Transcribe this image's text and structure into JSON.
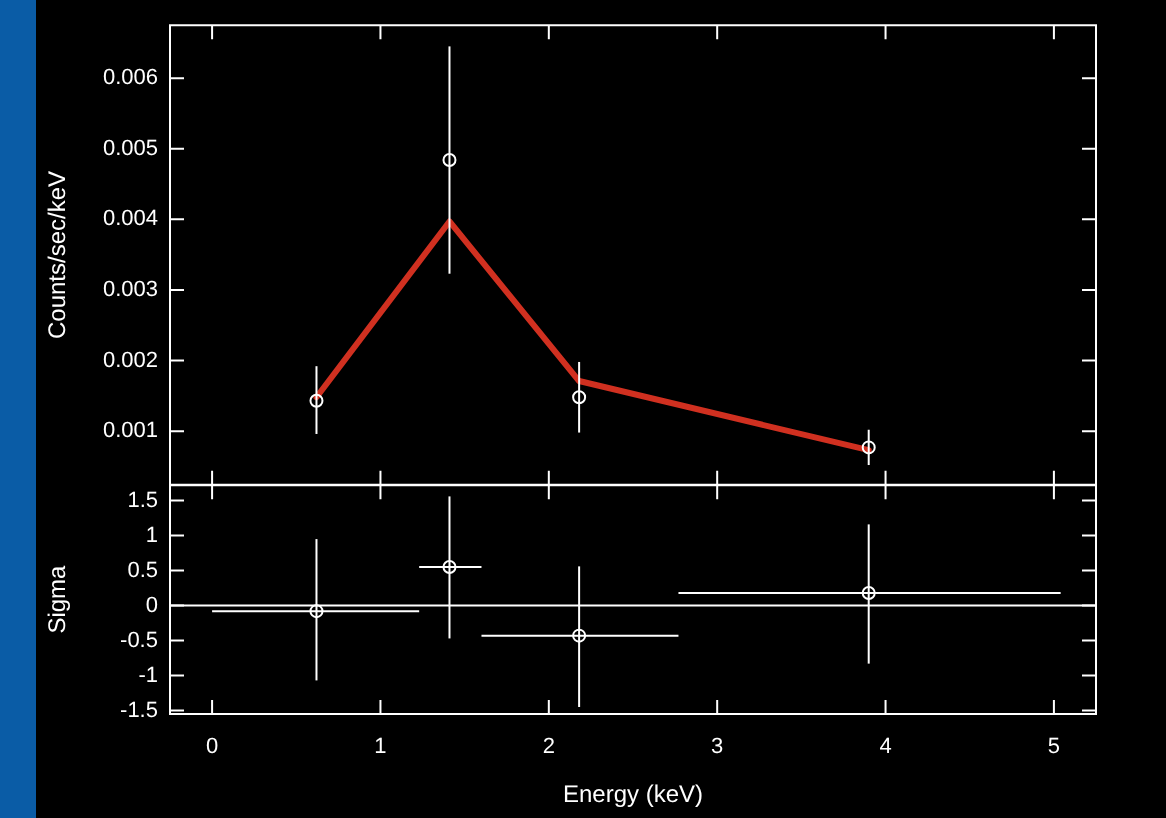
{
  "chart_data": [
    {
      "type": "scatter",
      "ylabel": "Counts/sec/keV",
      "xlim": [
        -0.25,
        5.25
      ],
      "xticks": [
        0,
        1,
        2,
        3,
        4,
        5
      ],
      "ylim": [
        0.00024,
        0.00675
      ],
      "yticks": [
        0.001,
        0.002,
        0.003,
        0.004,
        0.005,
        0.006
      ],
      "tick_labels": "y",
      "grid": false,
      "legend": false,
      "x": [
        0.62,
        1.41,
        2.18,
        3.9
      ],
      "series": [
        {
          "type": "scatter",
          "color": "#ffffff",
          "marker": "circle",
          "values": [
            0.00143,
            0.00484,
            0.00148,
            0.00077
          ],
          "errors": [
            [
              0.00096,
              0.00192
            ],
            [
              0.00323,
              0.00645
            ],
            [
              0.00098,
              0.00198
            ],
            [
              0.00052,
              0.00102
            ]
          ]
        },
        {
          "type": "line",
          "color": "#d03020",
          "marker": "none",
          "values": [
            0.00148,
            0.00397,
            0.00171,
            0.00073
          ]
        }
      ]
    },
    {
      "type": "scatter",
      "xlabel": "Energy (keV)",
      "ylabel": "Sigma",
      "xlim": [
        -0.25,
        5.25
      ],
      "xticks": [
        0,
        1,
        2,
        3,
        4,
        5
      ],
      "ylim": [
        -1.55,
        1.72
      ],
      "yticks": [
        -1.5,
        -1,
        -0.5,
        0,
        0.5,
        1,
        1.5
      ],
      "grid": false,
      "legend": false,
      "x": [
        0.62,
        1.41,
        2.18,
        3.9
      ],
      "ref_lines": [
        {
          "axis": "y",
          "value": 0,
          "color": "#ffffff"
        }
      ],
      "series": [
        {
          "type": "scatter",
          "color": "#ffffff",
          "marker": "circle",
          "values": [
            -0.08,
            0.55,
            -0.43,
            0.18
          ],
          "errors": [
            [
              -1.07,
              0.95
            ],
            [
              -0.47,
              1.56
            ],
            [
              -1.45,
              0.56
            ],
            [
              -0.83,
              1.16
            ]
          ],
          "xerrors": [
            [
              0,
              1.23
            ],
            [
              1.23,
              1.6
            ],
            [
              1.6,
              2.77
            ],
            [
              2.77,
              5.04
            ]
          ]
        }
      ]
    }
  ]
}
